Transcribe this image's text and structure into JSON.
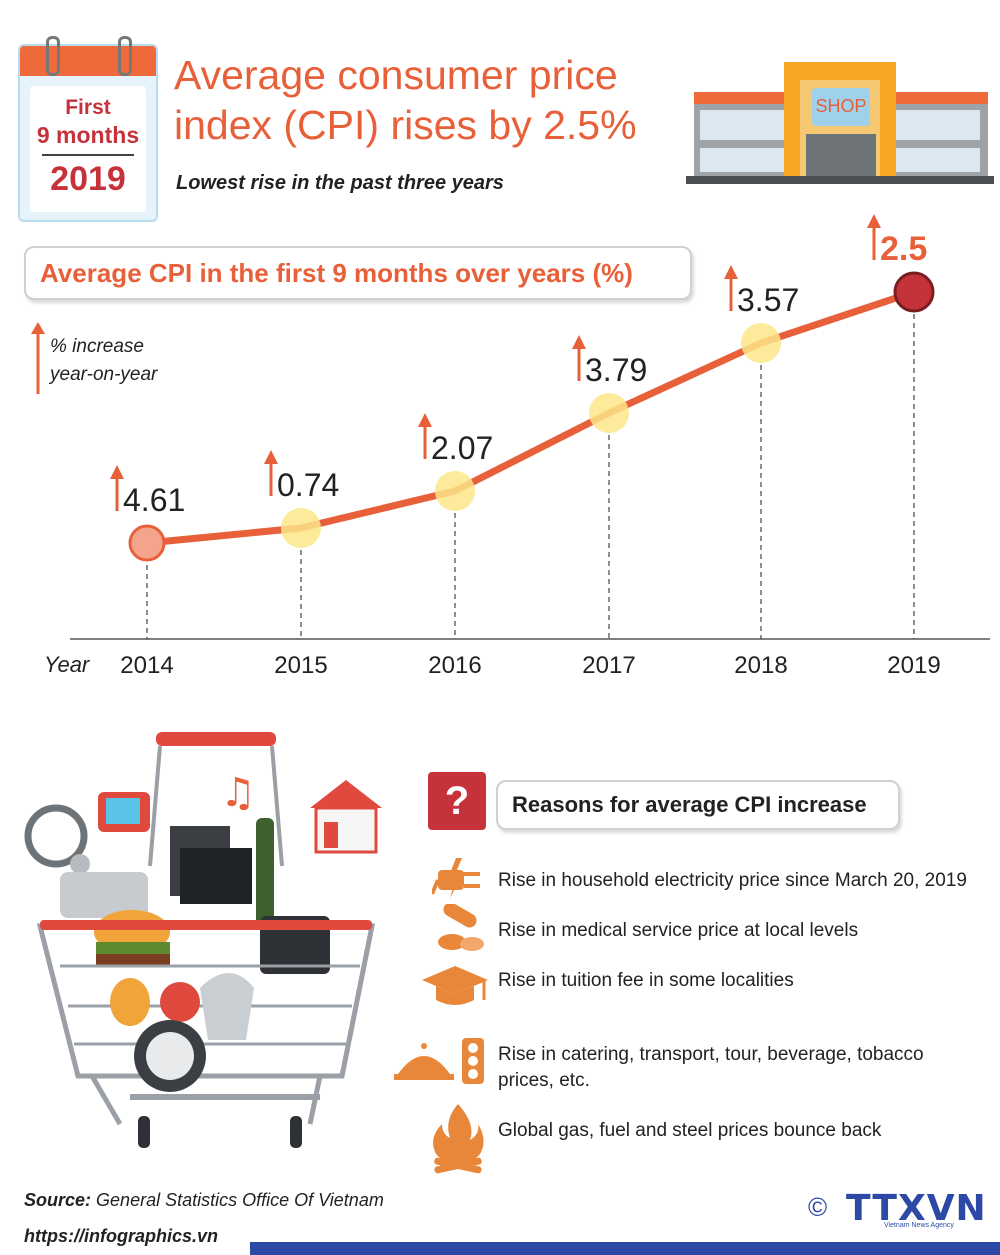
{
  "badge": {
    "line1": "First",
    "line2": "9 months",
    "year": "2019"
  },
  "header": {
    "title_line1": "Average consumer price",
    "title_line2": "index (CPI) rises by 2.5%",
    "subtitle": "Lowest rise in the past three years"
  },
  "shop": {
    "sign": "SHOP"
  },
  "legend": {
    "line1": "% increase",
    "line2": "year-on-year"
  },
  "colors": {
    "accent": "#e8603a",
    "highlight_dot": "#fde68a",
    "final_dot": "#c6323a",
    "brand_blue": "#2c4aa5"
  },
  "chart_data": {
    "type": "line",
    "title": "Average CPI in the first 9 months over years (%)",
    "xlabel": "Year",
    "x": [
      "2014",
      "2015",
      "2016",
      "2017",
      "2018",
      "2019"
    ],
    "series": [
      {
        "values": [
          4.61,
          0.74,
          2.07,
          3.79,
          3.57,
          2.5
        ]
      }
    ],
    "data_labels": [
      "4.61",
      "0.74",
      "2.07",
      "3.79",
      "3.57",
      "2.5"
    ]
  },
  "reasons": {
    "title": "Reasons for average CPI increase",
    "q_mark": "?",
    "items": [
      {
        "icon": "electric-plug-icon",
        "text": "Rise in household electricity price since March 20, 2019"
      },
      {
        "icon": "pills-icon",
        "text": "Rise in medical service price at local levels"
      },
      {
        "icon": "graduation-cap-icon",
        "text": "Rise in tuition fee in some localities"
      },
      {
        "icon": "food-cloche-traffic-light-icon",
        "text": "Rise in catering, transport, tour, beverage, tobacco prices, etc."
      },
      {
        "icon": "fire-icon",
        "text": "Global gas, fuel and steel prices bounce back"
      }
    ]
  },
  "footer": {
    "source_label": "Source:",
    "source_text": "General Statistics Office Of Vietnam",
    "url": "https://infographics.vn",
    "copyright": "©",
    "logo": "TTXVN",
    "logo_sub": "Vietnam News Agency"
  }
}
